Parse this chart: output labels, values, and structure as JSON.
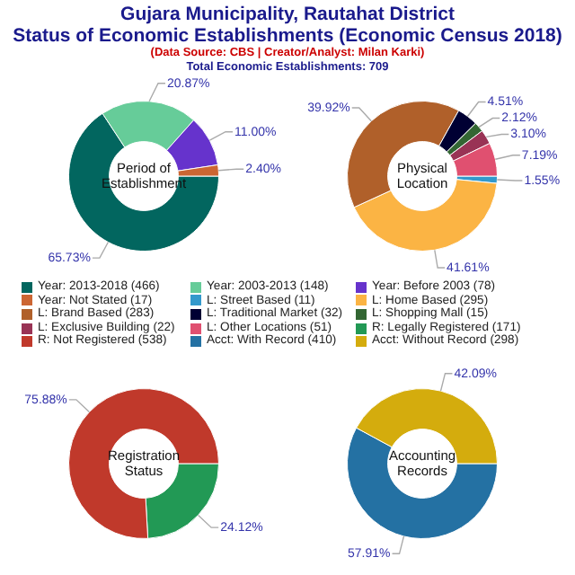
{
  "chart_data": [
    {
      "type": "donut",
      "title": "Period of Establishment",
      "legend": "bottom",
      "annotations": [
        "Gujara Municipality, Rautahat District",
        "Status of Economic Establishments (Economic Census 2018)",
        "(Data Source: CBS | Creator/Analyst: Milan Karki)",
        "Total Economic Establishments: 709"
      ],
      "categories": [
        "Year: 2013-2018 (466)",
        "Year: 2003-2013 (148)",
        "Year: Before 2003 (78)",
        "Year: Not Stated (17)"
      ],
      "values": [
        65.73,
        20.87,
        11.0,
        2.4
      ],
      "value_labels": [
        "65.73%",
        "20.87%",
        "11.00%",
        "2.40%"
      ],
      "colors": [
        "#02665f",
        "#66cc99",
        "#6633cc",
        "#cc6633"
      ]
    },
    {
      "type": "donut",
      "title": "Physical Location",
      "legend": "bottom",
      "categories": [
        "L: Street Based (11)",
        "L: Home Based (295)",
        "L: Brand Based (283)",
        "L: Traditional Market (32)",
        "L: Shopping Mall (15)",
        "L: Exclusive Building (22)",
        "L: Other Locations (51)"
      ],
      "values": [
        1.55,
        41.61,
        39.92,
        4.51,
        2.12,
        3.1,
        7.19
      ],
      "value_labels": [
        "1.55%",
        "41.61%",
        "39.92%",
        "4.51%",
        "2.12%",
        "3.10%",
        "7.19%"
      ],
      "colors": [
        "#3399cc",
        "#fbb444",
        "#b0602a",
        "#000033",
        "#336633",
        "#993355",
        "#e05070"
      ]
    },
    {
      "type": "donut",
      "title": "Registration Status",
      "legend": "top",
      "categories": [
        "R: Legally Registered (171)",
        "R: Not Registered (538)"
      ],
      "values": [
        24.12,
        75.88
      ],
      "value_labels": [
        "24.12%",
        "75.88%"
      ],
      "colors": [
        "#229955",
        "#c0392b"
      ]
    },
    {
      "type": "donut",
      "title": "Accounting Records",
      "legend": "top",
      "categories": [
        "Acct: With Record (410)",
        "Acct: Without Record (298)"
      ],
      "values": [
        57.91,
        42.09
      ],
      "value_labels": [
        "57.91%",
        "42.09%"
      ],
      "colors": [
        "#2471a3",
        "#d4ac0d"
      ]
    }
  ]
}
